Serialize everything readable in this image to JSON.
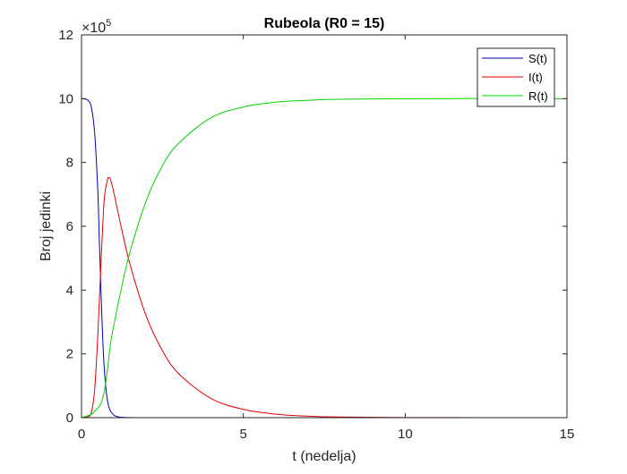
{
  "chart_data": {
    "type": "line",
    "title": "Rubeola (R0 = 15)",
    "xlabel": "t (nedelja)",
    "ylabel": "Broj jedinki",
    "xlim": [
      0,
      15
    ],
    "ylim": [
      0,
      1200000
    ],
    "x_ticks": [
      0,
      5,
      10,
      15
    ],
    "y_ticks": [
      0,
      2,
      4,
      6,
      8,
      10,
      12
    ],
    "y_multiplier": {
      "base": "×10",
      "exponent": "5"
    },
    "grid": false,
    "legend_position": "top-right",
    "series": [
      {
        "name": "S(t)",
        "color": "#0000b3",
        "x": [
          0,
          0.1,
          0.2,
          0.3,
          0.4,
          0.5,
          0.55,
          0.6,
          0.65,
          0.7,
          0.75,
          0.8,
          0.85,
          0.9,
          1.0,
          1.1,
          1.2,
          1.5,
          2,
          3,
          15
        ],
        "y": [
          1000000,
          999000,
          995000,
          975000,
          900000,
          720000,
          560000,
          400000,
          260000,
          160000,
          95000,
          55000,
          32000,
          20000,
          8000,
          3500,
          1500,
          300,
          50,
          0,
          0
        ]
      },
      {
        "name": "I(t)",
        "color": "#e00000",
        "x": [
          0,
          0.2,
          0.3,
          0.4,
          0.5,
          0.6,
          0.7,
          0.8,
          0.85,
          0.9,
          1.0,
          1.2,
          1.5,
          2,
          2.5,
          3,
          4,
          5,
          6,
          7,
          8,
          10,
          15
        ],
        "y": [
          0,
          3000,
          15000,
          80000,
          250000,
          480000,
          680000,
          745000,
          752000,
          745000,
          705000,
          610000,
          480000,
          318000,
          210000,
          138000,
          60000,
          26000,
          11000,
          4700,
          2000,
          400,
          0
        ]
      },
      {
        "name": "R(t)",
        "color": "#00d400",
        "x": [
          0,
          0.3,
          0.4,
          0.5,
          0.6,
          0.7,
          0.8,
          0.9,
          1.0,
          1.2,
          1.5,
          2,
          2.5,
          3,
          4,
          5,
          6,
          7,
          8,
          10,
          15
        ],
        "y": [
          0,
          10000,
          20000,
          30000,
          45000,
          80000,
          150000,
          235000,
          290000,
          390000,
          520000,
          680000,
          790000,
          860000,
          940000,
          974000,
          989000,
          995000,
          998000,
          1000000,
          1000000
        ]
      }
    ]
  }
}
